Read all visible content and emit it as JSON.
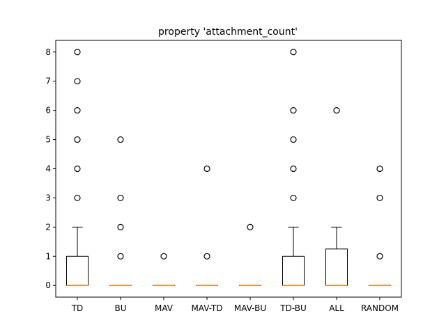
{
  "chart_data": {
    "type": "box",
    "title": "property 'attachment_count'",
    "xlabel": "",
    "ylabel": "",
    "ylim": [
      -0.4,
      8.4
    ],
    "yticks": [
      0,
      1,
      2,
      3,
      4,
      5,
      6,
      7,
      8
    ],
    "grid": false,
    "legend": "none",
    "colors": {
      "box": "#000000",
      "median": "#ff7f0e",
      "flier": "#000000"
    },
    "categories": [
      "TD",
      "BU",
      "MAV",
      "MAV-TD",
      "MAV-BU",
      "TD-BU",
      "ALL",
      "RANDOM"
    ],
    "boxes": [
      {
        "label": "TD",
        "whislo": 0,
        "q1": 0,
        "med": 0,
        "q3": 1,
        "whishi": 2,
        "fliers": [
          3,
          4,
          5,
          6,
          7,
          8
        ]
      },
      {
        "label": "BU",
        "whislo": 0,
        "q1": 0,
        "med": 0,
        "q3": 0,
        "whishi": 0,
        "fliers": [
          1,
          2,
          3,
          5
        ]
      },
      {
        "label": "MAV",
        "whislo": 0,
        "q1": 0,
        "med": 0,
        "q3": 0,
        "whishi": 0,
        "fliers": [
          1
        ]
      },
      {
        "label": "MAV-TD",
        "whislo": 0,
        "q1": 0,
        "med": 0,
        "q3": 0,
        "whishi": 0,
        "fliers": [
          1,
          4
        ]
      },
      {
        "label": "MAV-BU",
        "whislo": 0,
        "q1": 0,
        "med": 0,
        "q3": 0,
        "whishi": 0,
        "fliers": [
          2
        ]
      },
      {
        "label": "TD-BU",
        "whislo": 0,
        "q1": 0,
        "med": 0,
        "q3": 1,
        "whishi": 2,
        "fliers": [
          3,
          4,
          5,
          6,
          8
        ]
      },
      {
        "label": "ALL",
        "whislo": 0,
        "q1": 0,
        "med": 0,
        "q3": 1.25,
        "whishi": 2,
        "fliers": [
          6
        ]
      },
      {
        "label": "RANDOM",
        "whislo": 0,
        "q1": 0,
        "med": 0,
        "q3": 0,
        "whishi": 0,
        "fliers": [
          1,
          3,
          4
        ]
      }
    ]
  }
}
